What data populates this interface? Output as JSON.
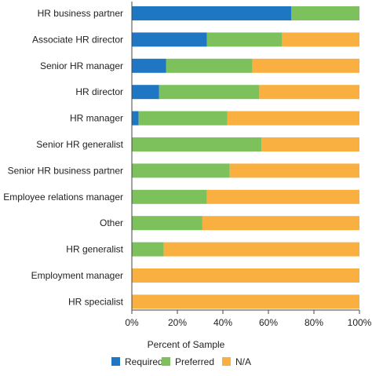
{
  "chart_data": {
    "type": "bar",
    "orientation": "horizontal",
    "stacked": true,
    "categories": [
      "HR business partner",
      "Associate HR director",
      "Senior HR manager",
      "HR director",
      "HR manager",
      "Senior HR generalist",
      "Senior HR business partner",
      "Employee relations manager",
      "Other",
      "HR generalist",
      "Employment manager",
      "HR specialist"
    ],
    "series": [
      {
        "name": "Required",
        "color": "#1f77c4",
        "values": [
          70,
          33,
          15,
          12,
          3,
          0,
          0,
          0,
          0,
          0,
          0,
          0
        ]
      },
      {
        "name": "Preferred",
        "color": "#7cc15b",
        "values": [
          30,
          33,
          38,
          44,
          39,
          57,
          43,
          33,
          31,
          14,
          0,
          0
        ]
      },
      {
        "name": "N/A",
        "color": "#f9b040",
        "values": [
          0,
          34,
          47,
          44,
          58,
          43,
          57,
          67,
          69,
          86,
          100,
          100
        ]
      }
    ],
    "xlabel": "Percent of Sample",
    "ylabel": "",
    "xlim": [
      0,
      100
    ],
    "xticks": [
      "0%",
      "20%",
      "40%",
      "60%",
      "80%",
      "100%"
    ],
    "grid": false,
    "legend_position": "bottom"
  }
}
